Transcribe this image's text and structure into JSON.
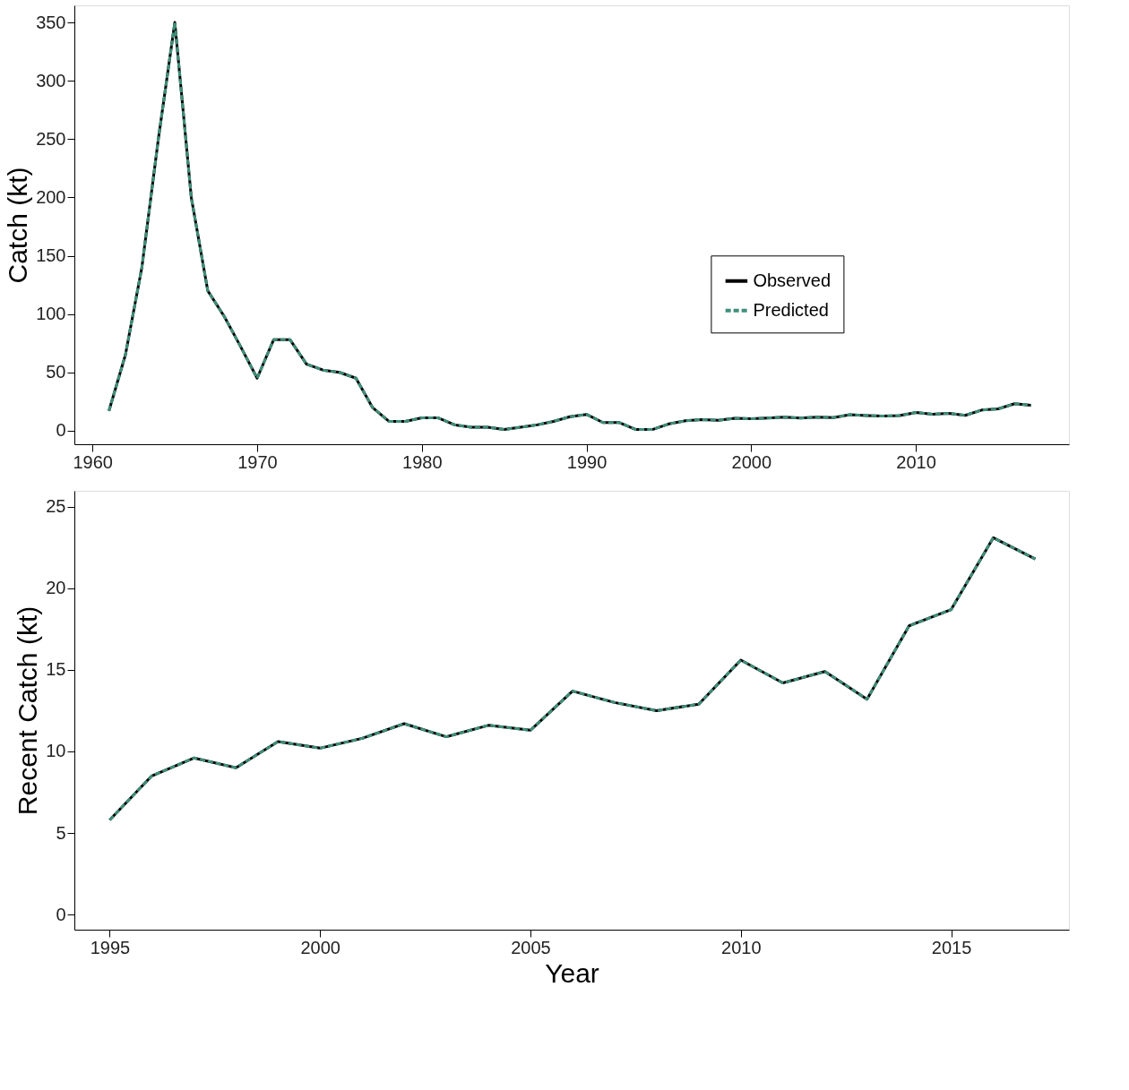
{
  "chart_data": [
    {
      "type": "line",
      "ylabel": "Catch (kt)",
      "x": [
        1961,
        1962,
        1963,
        1964,
        1965,
        1966,
        1967,
        1968,
        1969,
        1970,
        1971,
        1972,
        1973,
        1974,
        1975,
        1976,
        1977,
        1978,
        1979,
        1980,
        1981,
        1982,
        1983,
        1984,
        1985,
        1986,
        1987,
        1988,
        1989,
        1990,
        1991,
        1992,
        1993,
        1994,
        1995,
        1996,
        1997,
        1998,
        1999,
        2000,
        2001,
        2002,
        2003,
        2004,
        2005,
        2006,
        2007,
        2008,
        2009,
        2010,
        2011,
        2012,
        2013,
        2014,
        2015,
        2016,
        2017
      ],
      "series": [
        {
          "name": "Observed",
          "color": "#000000",
          "line_style": "solid",
          "values": [
            17,
            65,
            140,
            250,
            350,
            200,
            120,
            98,
            72,
            45,
            78,
            78,
            57,
            52,
            50,
            45,
            20,
            8,
            8,
            11,
            11,
            5,
            3,
            3,
            1,
            3,
            5,
            8,
            12,
            14,
            7,
            7,
            1,
            1,
            5.8,
            8.5,
            9.6,
            9.0,
            10.6,
            10.2,
            10.8,
            11.7,
            10.9,
            11.6,
            11.3,
            13.7,
            13.0,
            12.5,
            12.9,
            15.6,
            14.2,
            14.9,
            13.2,
            17.7,
            18.7,
            23.1,
            21.8
          ]
        },
        {
          "name": "Predicted",
          "color": "#3f8f7a",
          "line_style": "dashed",
          "values": [
            17,
            65,
            140,
            250,
            350,
            200,
            120,
            98,
            72,
            45,
            78,
            78,
            57,
            52,
            50,
            45,
            20,
            8,
            8,
            11,
            11,
            5,
            3,
            3,
            1,
            3,
            5,
            8,
            12,
            14,
            7,
            7,
            1,
            1,
            5.8,
            8.5,
            9.6,
            9.0,
            10.6,
            10.2,
            10.8,
            11.7,
            10.9,
            11.6,
            11.3,
            13.7,
            13.0,
            12.5,
            12.9,
            15.6,
            14.2,
            14.9,
            13.2,
            17.7,
            18.7,
            23.1,
            21.8
          ]
        }
      ],
      "xlim": [
        1958.9,
        2019.3
      ],
      "xticks": [
        1960,
        1970,
        1980,
        1990,
        2000,
        2010
      ],
      "ylim": [
        -11.6,
        364.6
      ],
      "yticks": [
        0,
        50,
        100,
        150,
        200,
        250,
        300,
        350
      ],
      "legend": "right",
      "grid": false
    },
    {
      "type": "line",
      "ylabel": "Recent Catch (kt)",
      "xlabel": "Year",
      "x": [
        1995,
        1996,
        1997,
        1998,
        1999,
        2000,
        2001,
        2002,
        2003,
        2004,
        2005,
        2006,
        2007,
        2008,
        2009,
        2010,
        2011,
        2012,
        2013,
        2014,
        2015,
        2016,
        2017
      ],
      "series": [
        {
          "color": "#000000",
          "line_style": "solid",
          "values": [
            5.8,
            8.5,
            9.6,
            9.0,
            10.6,
            10.2,
            10.8,
            11.7,
            10.9,
            11.6,
            11.3,
            13.7,
            13.0,
            12.5,
            12.9,
            15.6,
            14.2,
            14.9,
            13.2,
            17.7,
            18.7,
            23.1,
            21.8
          ]
        },
        {
          "color": "#3f8f7a",
          "line_style": "dashed",
          "values": [
            5.8,
            8.5,
            9.6,
            9.0,
            10.6,
            10.2,
            10.8,
            11.7,
            10.9,
            11.6,
            11.3,
            13.7,
            13.0,
            12.5,
            12.9,
            15.6,
            14.2,
            14.9,
            13.2,
            17.7,
            18.7,
            23.1,
            21.8
          ]
        }
      ],
      "xlim": [
        1994.16,
        2017.8
      ],
      "xticks": [
        1995,
        2000,
        2005,
        2010,
        2015
      ],
      "ylim": [
        -0.93,
        25.98
      ],
      "yticks": [
        0,
        5,
        10,
        15,
        20,
        25
      ],
      "legend": false,
      "grid": false
    }
  ]
}
